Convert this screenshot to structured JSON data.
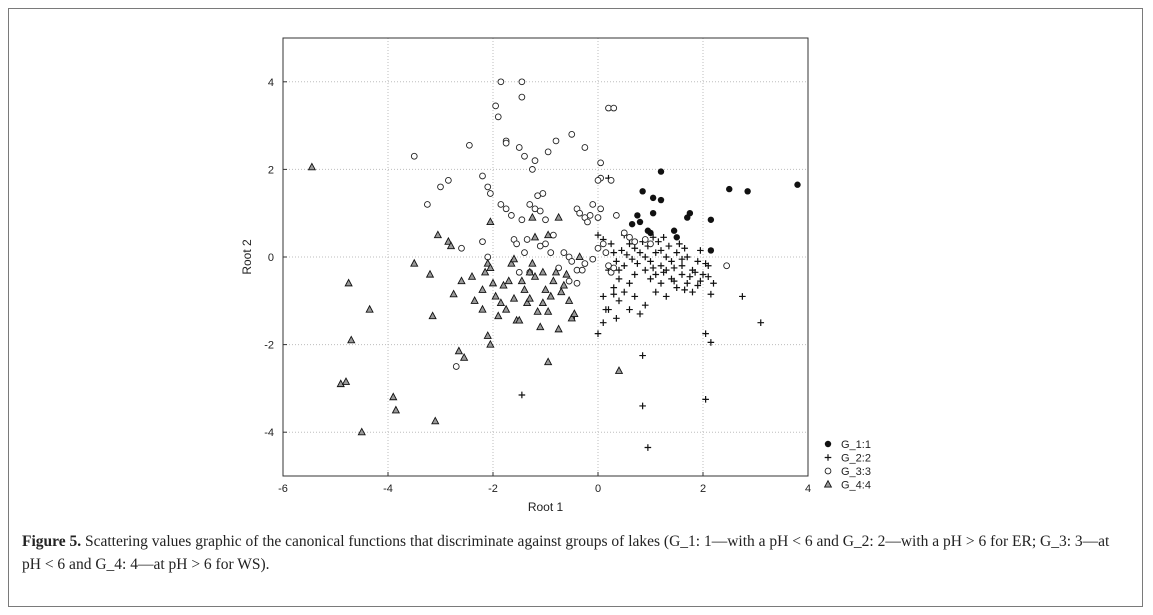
{
  "caption": {
    "label": "Figure 5.",
    "text": " Scattering values graphic of the canonical functions that discriminate against groups of lakes (G_1: 1—with a pH < 6 and G_2: 2—with a pH > 6 for ER; G_3: 3—at pH < 6 and G_4: 4—at pH > 6 for WS)."
  },
  "chart_data": {
    "type": "scatter",
    "xlabel": "Root 1",
    "ylabel": "Root 2",
    "xlim": [
      -6,
      4
    ],
    "ylim": [
      -5,
      5
    ],
    "xticks": [
      "-6",
      "-4",
      "-2",
      "0",
      "2",
      "4"
    ],
    "yticks": [
      "-4",
      "-2",
      "0",
      "2",
      "4"
    ],
    "grid": true,
    "legend_position": "bottom-right",
    "series": [
      {
        "name": "G_1:1",
        "marker": "filled-circle",
        "points": [
          [
            3.8,
            1.65
          ],
          [
            2.85,
            1.5
          ],
          [
            2.5,
            1.55
          ],
          [
            2.15,
            0.85
          ],
          [
            2.15,
            0.15
          ],
          [
            1.75,
            1.0
          ],
          [
            1.7,
            0.9
          ],
          [
            1.2,
            1.95
          ],
          [
            1.2,
            1.3
          ],
          [
            1.05,
            1.35
          ],
          [
            1.05,
            1.0
          ],
          [
            0.85,
            1.5
          ],
          [
            0.75,
            0.95
          ],
          [
            0.8,
            0.8
          ],
          [
            0.95,
            0.6
          ],
          [
            1.0,
            0.55
          ],
          [
            1.45,
            0.6
          ],
          [
            1.5,
            0.45
          ],
          [
            0.65,
            0.75
          ]
        ]
      },
      {
        "name": "G_2:2",
        "marker": "plus",
        "points": [
          [
            0.2,
            1.8
          ],
          [
            0.0,
            0.5
          ],
          [
            0.1,
            0.4
          ],
          [
            0.25,
            0.3
          ],
          [
            0.5,
            0.5
          ],
          [
            0.6,
            0.3
          ],
          [
            0.7,
            0.2
          ],
          [
            0.8,
            0.1
          ],
          [
            0.9,
            0.0
          ],
          [
            1.0,
            -0.1
          ],
          [
            1.1,
            0.1
          ],
          [
            1.2,
            -0.2
          ],
          [
            1.3,
            0.0
          ],
          [
            1.4,
            -0.1
          ],
          [
            1.5,
            0.1
          ],
          [
            1.6,
            -0.2
          ],
          [
            1.7,
            0.0
          ],
          [
            1.8,
            -0.3
          ],
          [
            1.9,
            -0.1
          ],
          [
            2.0,
            -0.4
          ],
          [
            2.1,
            -0.2
          ],
          [
            2.2,
            -0.6
          ],
          [
            0.9,
            -0.3
          ],
          [
            1.0,
            -0.5
          ],
          [
            1.1,
            -0.4
          ],
          [
            1.2,
            -0.6
          ],
          [
            1.3,
            -0.3
          ],
          [
            1.4,
            -0.5
          ],
          [
            1.5,
            -0.7
          ],
          [
            1.6,
            -0.4
          ],
          [
            1.7,
            -0.6
          ],
          [
            1.8,
            -0.8
          ],
          [
            0.7,
            -0.4
          ],
          [
            0.6,
            -0.6
          ],
          [
            0.5,
            -0.2
          ],
          [
            0.4,
            -0.5
          ],
          [
            0.3,
            -0.7
          ],
          [
            0.2,
            -0.3
          ],
          [
            0.1,
            -0.9
          ],
          [
            0.15,
            -1.2
          ],
          [
            0.4,
            -1.0
          ],
          [
            0.5,
            -0.8
          ],
          [
            0.7,
            -0.9
          ],
          [
            0.9,
            -1.1
          ],
          [
            1.1,
            -0.8
          ],
          [
            1.3,
            -0.9
          ],
          [
            0.8,
            -1.3
          ],
          [
            0.6,
            -1.2
          ],
          [
            0.35,
            -1.4
          ],
          [
            0.1,
            -1.5
          ],
          [
            0.0,
            -1.75
          ],
          [
            0.2,
            -1.2
          ],
          [
            0.3,
            -0.85
          ],
          [
            1.25,
            0.45
          ],
          [
            1.35,
            0.25
          ],
          [
            1.55,
            0.3
          ],
          [
            1.65,
            0.2
          ],
          [
            1.95,
            0.15
          ],
          [
            0.85,
            0.35
          ],
          [
            0.95,
            0.25
          ],
          [
            1.05,
            0.45
          ],
          [
            1.15,
            0.35
          ],
          [
            1.45,
            -0.25
          ],
          [
            1.75,
            -0.45
          ],
          [
            1.85,
            -0.35
          ],
          [
            2.05,
            -0.15
          ],
          [
            0.75,
            -0.15
          ],
          [
            0.65,
            -0.05
          ],
          [
            0.55,
            0.05
          ],
          [
            0.45,
            0.15
          ],
          [
            0.35,
            -0.1
          ],
          [
            1.05,
            -0.25
          ],
          [
            1.25,
            -0.35
          ],
          [
            1.45,
            -0.55
          ],
          [
            1.65,
            -0.75
          ],
          [
            1.95,
            -0.55
          ],
          [
            2.15,
            -0.85
          ],
          [
            2.75,
            -0.9
          ],
          [
            3.1,
            -1.5
          ],
          [
            2.05,
            -1.75
          ],
          [
            2.15,
            -1.95
          ],
          [
            0.85,
            -2.25
          ],
          [
            2.05,
            -3.25
          ],
          [
            0.85,
            -3.4
          ],
          [
            0.95,
            -4.35
          ],
          [
            -1.45,
            -3.15
          ],
          [
            -0.45,
            -1.35
          ],
          [
            0.3,
            0.1
          ],
          [
            0.4,
            -0.3
          ],
          [
            1.2,
            0.15
          ],
          [
            1.6,
            -0.05
          ],
          [
            1.9,
            -0.65
          ],
          [
            2.1,
            -0.45
          ]
        ]
      },
      {
        "name": "G_3:3",
        "marker": "open-circle",
        "points": [
          [
            -1.85,
            4.0
          ],
          [
            -1.45,
            4.0
          ],
          [
            -1.45,
            3.65
          ],
          [
            -1.95,
            3.45
          ],
          [
            -1.9,
            3.2
          ],
          [
            -2.45,
            2.55
          ],
          [
            -1.5,
            2.5
          ],
          [
            -1.4,
            2.3
          ],
          [
            -1.2,
            2.2
          ],
          [
            -1.25,
            2.0
          ],
          [
            -1.75,
            2.65
          ],
          [
            -1.75,
            2.6
          ],
          [
            -0.95,
            2.4
          ],
          [
            -0.8,
            2.65
          ],
          [
            -0.5,
            2.8
          ],
          [
            -0.25,
            2.5
          ],
          [
            0.2,
            3.4
          ],
          [
            0.3,
            3.4
          ],
          [
            -3.5,
            2.3
          ],
          [
            -3.0,
            1.6
          ],
          [
            -2.85,
            1.75
          ],
          [
            -2.2,
            1.85
          ],
          [
            -2.1,
            1.6
          ],
          [
            -2.05,
            1.45
          ],
          [
            -1.65,
            0.95
          ],
          [
            -1.75,
            1.1
          ],
          [
            -1.85,
            1.2
          ],
          [
            -1.3,
            1.2
          ],
          [
            -1.2,
            1.1
          ],
          [
            -1.1,
            1.05
          ],
          [
            -1.15,
            1.4
          ],
          [
            -1.05,
            1.45
          ],
          [
            -3.25,
            1.2
          ],
          [
            -2.6,
            0.2
          ],
          [
            -2.2,
            0.35
          ],
          [
            -2.1,
            0.0
          ],
          [
            -1.6,
            0.4
          ],
          [
            -1.35,
            0.4
          ],
          [
            -1.1,
            0.25
          ],
          [
            -0.85,
            0.5
          ],
          [
            -0.65,
            0.1
          ],
          [
            -0.55,
            0.0
          ],
          [
            -0.5,
            -0.1
          ],
          [
            -0.4,
            -0.3
          ],
          [
            -0.3,
            -0.3
          ],
          [
            -0.25,
            -0.15
          ],
          [
            -0.1,
            -0.05
          ],
          [
            0.0,
            0.2
          ],
          [
            0.1,
            0.3
          ],
          [
            0.15,
            0.1
          ],
          [
            0.2,
            -0.2
          ],
          [
            0.05,
            1.8
          ],
          [
            0.0,
            1.75
          ],
          [
            0.05,
            1.1
          ],
          [
            0.0,
            0.9
          ],
          [
            0.25,
            1.75
          ],
          [
            0.35,
            0.95
          ],
          [
            0.5,
            0.55
          ],
          [
            0.6,
            0.45
          ],
          [
            0.7,
            0.35
          ],
          [
            0.9,
            0.4
          ],
          [
            1.0,
            0.3
          ],
          [
            -0.4,
            1.1
          ],
          [
            -0.35,
            1.0
          ],
          [
            -0.25,
            0.9
          ],
          [
            -0.2,
            0.8
          ],
          [
            -0.1,
            1.2
          ],
          [
            0.05,
            2.15
          ],
          [
            -0.15,
            0.95
          ],
          [
            2.45,
            -0.2
          ],
          [
            -2.7,
            -2.5
          ],
          [
            -0.9,
            0.1
          ],
          [
            -0.75,
            -0.25
          ],
          [
            -1.3,
            -0.35
          ],
          [
            -1.5,
            -0.35
          ],
          [
            -0.55,
            -0.55
          ],
          [
            -0.4,
            -0.6
          ],
          [
            0.25,
            -0.35
          ],
          [
            0.3,
            -0.25
          ],
          [
            -1.0,
            0.3
          ],
          [
            -1.4,
            0.1
          ],
          [
            -1.55,
            0.3
          ],
          [
            -1.45,
            0.85
          ],
          [
            -1.0,
            0.85
          ]
        ]
      },
      {
        "name": "G_4:4",
        "marker": "filled-triangle",
        "points": [
          [
            -5.45,
            2.05
          ],
          [
            -4.75,
            -0.6
          ],
          [
            -4.7,
            -1.9
          ],
          [
            -4.35,
            -1.2
          ],
          [
            -4.9,
            -2.9
          ],
          [
            -4.8,
            -2.85
          ],
          [
            -4.5,
            -4.0
          ],
          [
            -3.9,
            -3.2
          ],
          [
            -3.85,
            -3.5
          ],
          [
            -3.1,
            -3.75
          ],
          [
            -3.5,
            -0.15
          ],
          [
            -3.2,
            -0.4
          ],
          [
            -3.15,
            -1.35
          ],
          [
            -3.05,
            0.5
          ],
          [
            -2.85,
            0.35
          ],
          [
            -2.8,
            0.25
          ],
          [
            -2.75,
            -0.85
          ],
          [
            -2.6,
            -0.55
          ],
          [
            -2.4,
            -0.45
          ],
          [
            -2.35,
            -1.0
          ],
          [
            -2.2,
            -0.75
          ],
          [
            -2.15,
            -0.35
          ],
          [
            -2.1,
            -0.15
          ],
          [
            -2.05,
            -0.25
          ],
          [
            -1.95,
            -0.9
          ],
          [
            -1.9,
            -1.35
          ],
          [
            -1.85,
            -1.05
          ],
          [
            -1.8,
            -0.65
          ],
          [
            -1.7,
            -0.55
          ],
          [
            -1.65,
            -0.15
          ],
          [
            -1.6,
            -0.95
          ],
          [
            -1.55,
            -1.45
          ],
          [
            -1.5,
            -1.45
          ],
          [
            -1.45,
            -0.55
          ],
          [
            -1.4,
            -0.75
          ],
          [
            -1.35,
            -1.05
          ],
          [
            -1.3,
            -0.35
          ],
          [
            -1.25,
            -0.15
          ],
          [
            -1.2,
            -0.45
          ],
          [
            -1.15,
            -1.25
          ],
          [
            -1.1,
            -1.6
          ],
          [
            -1.05,
            -0.35
          ],
          [
            -1.0,
            -0.75
          ],
          [
            -0.95,
            -1.25
          ],
          [
            -0.9,
            -0.9
          ],
          [
            -0.85,
            -0.55
          ],
          [
            -0.8,
            -0.35
          ],
          [
            -0.75,
            -1.65
          ],
          [
            -0.7,
            -0.8
          ],
          [
            -0.65,
            -0.65
          ],
          [
            -0.6,
            -0.4
          ],
          [
            -0.55,
            -1.0
          ],
          [
            -0.5,
            -1.4
          ],
          [
            -2.65,
            -2.15
          ],
          [
            -2.55,
            -2.3
          ],
          [
            -2.1,
            -1.8
          ],
          [
            -2.05,
            -2.0
          ],
          [
            -0.95,
            -2.4
          ],
          [
            0.4,
            -2.6
          ],
          [
            -2.0,
            -0.6
          ],
          [
            -1.75,
            -1.2
          ],
          [
            -1.3,
            -0.95
          ],
          [
            -0.75,
            0.9
          ],
          [
            -0.95,
            0.5
          ],
          [
            -0.35,
            0.0
          ],
          [
            -2.05,
            0.8
          ],
          [
            -2.2,
            -1.2
          ],
          [
            -1.6,
            -0.05
          ],
          [
            -1.2,
            0.45
          ],
          [
            -0.45,
            -1.3
          ],
          [
            -1.25,
            0.9
          ],
          [
            -1.05,
            -1.05
          ]
        ]
      }
    ]
  }
}
